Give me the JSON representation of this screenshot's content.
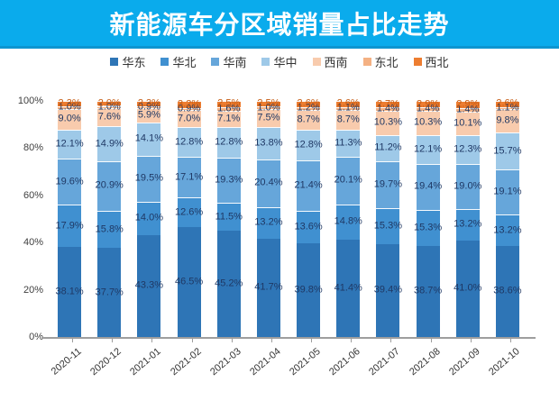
{
  "header": {
    "title": "新能源车分区域销量占比走势"
  },
  "colors": {
    "title_bg": "#0aabec",
    "title_border": "#0d95d0",
    "title_text": "#ffffff",
    "axis": "#9e9e9e",
    "tick_label": "#404040",
    "data_label": "#1f3864",
    "northwest_label": "#c55a11"
  },
  "chart_data": {
    "type": "bar",
    "stacked": true,
    "unit": "%",
    "title": "新能源车分区域销量占比走势",
    "xlabel": "",
    "ylabel": "",
    "ylim": [
      0,
      100
    ],
    "grid": false,
    "legend_position": "top",
    "ytick_values": [
      0,
      20,
      40,
      60,
      80,
      100
    ],
    "ytick_suffix": "%",
    "categories": [
      "2020-11",
      "2020-12",
      "2021-01",
      "2021-02",
      "2021-03",
      "2021-04",
      "2021-05",
      "2021-06",
      "2021-07",
      "2021-08",
      "2021-09",
      "2021-10"
    ],
    "series": [
      {
        "name": "华东",
        "color": "#2e75b6",
        "values": [
          38.1,
          37.7,
          43.3,
          46.5,
          45.2,
          41.7,
          39.8,
          41.4,
          39.4,
          38.7,
          41.0,
          38.6
        ]
      },
      {
        "name": "华北",
        "color": "#4090d0",
        "values": [
          17.9,
          15.8,
          14.0,
          12.6,
          11.5,
          13.2,
          13.6,
          14.8,
          15.3,
          15.3,
          13.2,
          13.2
        ]
      },
      {
        "name": "华南",
        "color": "#66a6da",
        "values": [
          19.6,
          20.9,
          19.5,
          17.1,
          19.3,
          20.4,
          21.4,
          20.1,
          19.7,
          19.4,
          19.0,
          19.1
        ]
      },
      {
        "name": "华中",
        "color": "#9ec9e8",
        "values": [
          12.1,
          14.9,
          14.1,
          12.8,
          12.8,
          13.8,
          12.8,
          11.3,
          11.2,
          12.1,
          12.3,
          15.7
        ]
      },
      {
        "name": "西南",
        "color": "#f8cbad",
        "values": [
          9.0,
          7.6,
          5.9,
          7.0,
          7.1,
          7.5,
          8.7,
          8.7,
          10.3,
          10.3,
          10.1,
          9.8
        ]
      },
      {
        "name": "东北",
        "color": "#f4b183",
        "values": [
          1.0,
          1.0,
          0.9,
          0.9,
          1.6,
          1.0,
          1.2,
          1.1,
          1.4,
          1.4,
          1.4,
          1.1
        ]
      },
      {
        "name": "西北",
        "color": "#ed7d31",
        "values": [
          2.3,
          2.0,
          2.3,
          3.2,
          2.5,
          2.5,
          2.6,
          2.6,
          2.7,
          2.9,
          2.9,
          2.6
        ]
      }
    ]
  }
}
